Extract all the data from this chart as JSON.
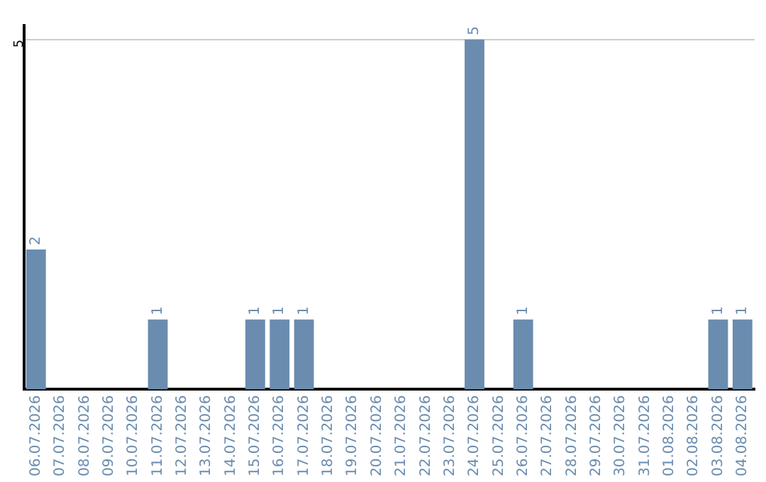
{
  "chart_data": {
    "type": "bar",
    "categories": [
      "06.07.2026",
      "07.07.2026",
      "08.07.2026",
      "09.07.2026",
      "10.07.2026",
      "11.07.2026",
      "12.07.2026",
      "13.07.2026",
      "14.07.2026",
      "15.07.2026",
      "16.07.2026",
      "17.07.2026",
      "18.07.2026",
      "19.07.2026",
      "20.07.2026",
      "21.07.2026",
      "22.07.2026",
      "23.07.2026",
      "24.07.2026",
      "25.07.2026",
      "26.07.2026",
      "27.07.2026",
      "28.07.2026",
      "29.07.2026",
      "30.07.2026",
      "31.07.2026",
      "01.08.2026",
      "02.08.2026",
      "03.08.2026",
      "04.08.2026"
    ],
    "values": [
      2,
      0,
      0,
      0,
      0,
      1,
      0,
      0,
      0,
      1,
      1,
      1,
      0,
      0,
      0,
      0,
      0,
      0,
      5,
      0,
      1,
      0,
      0,
      0,
      0,
      0,
      0,
      0,
      1,
      1
    ],
    "value_labels": [
      "2",
      null,
      null,
      null,
      null,
      "1",
      null,
      null,
      null,
      "1",
      "1",
      "1",
      null,
      null,
      null,
      null,
      null,
      null,
      "5",
      null,
      "1",
      null,
      null,
      null,
      null,
      null,
      null,
      null,
      "1",
      "1"
    ],
    "color": "#6a8caf",
    "ylim": [
      0,
      5.2
    ],
    "yticks": [
      5
    ],
    "grid": "y",
    "legend": false
  }
}
